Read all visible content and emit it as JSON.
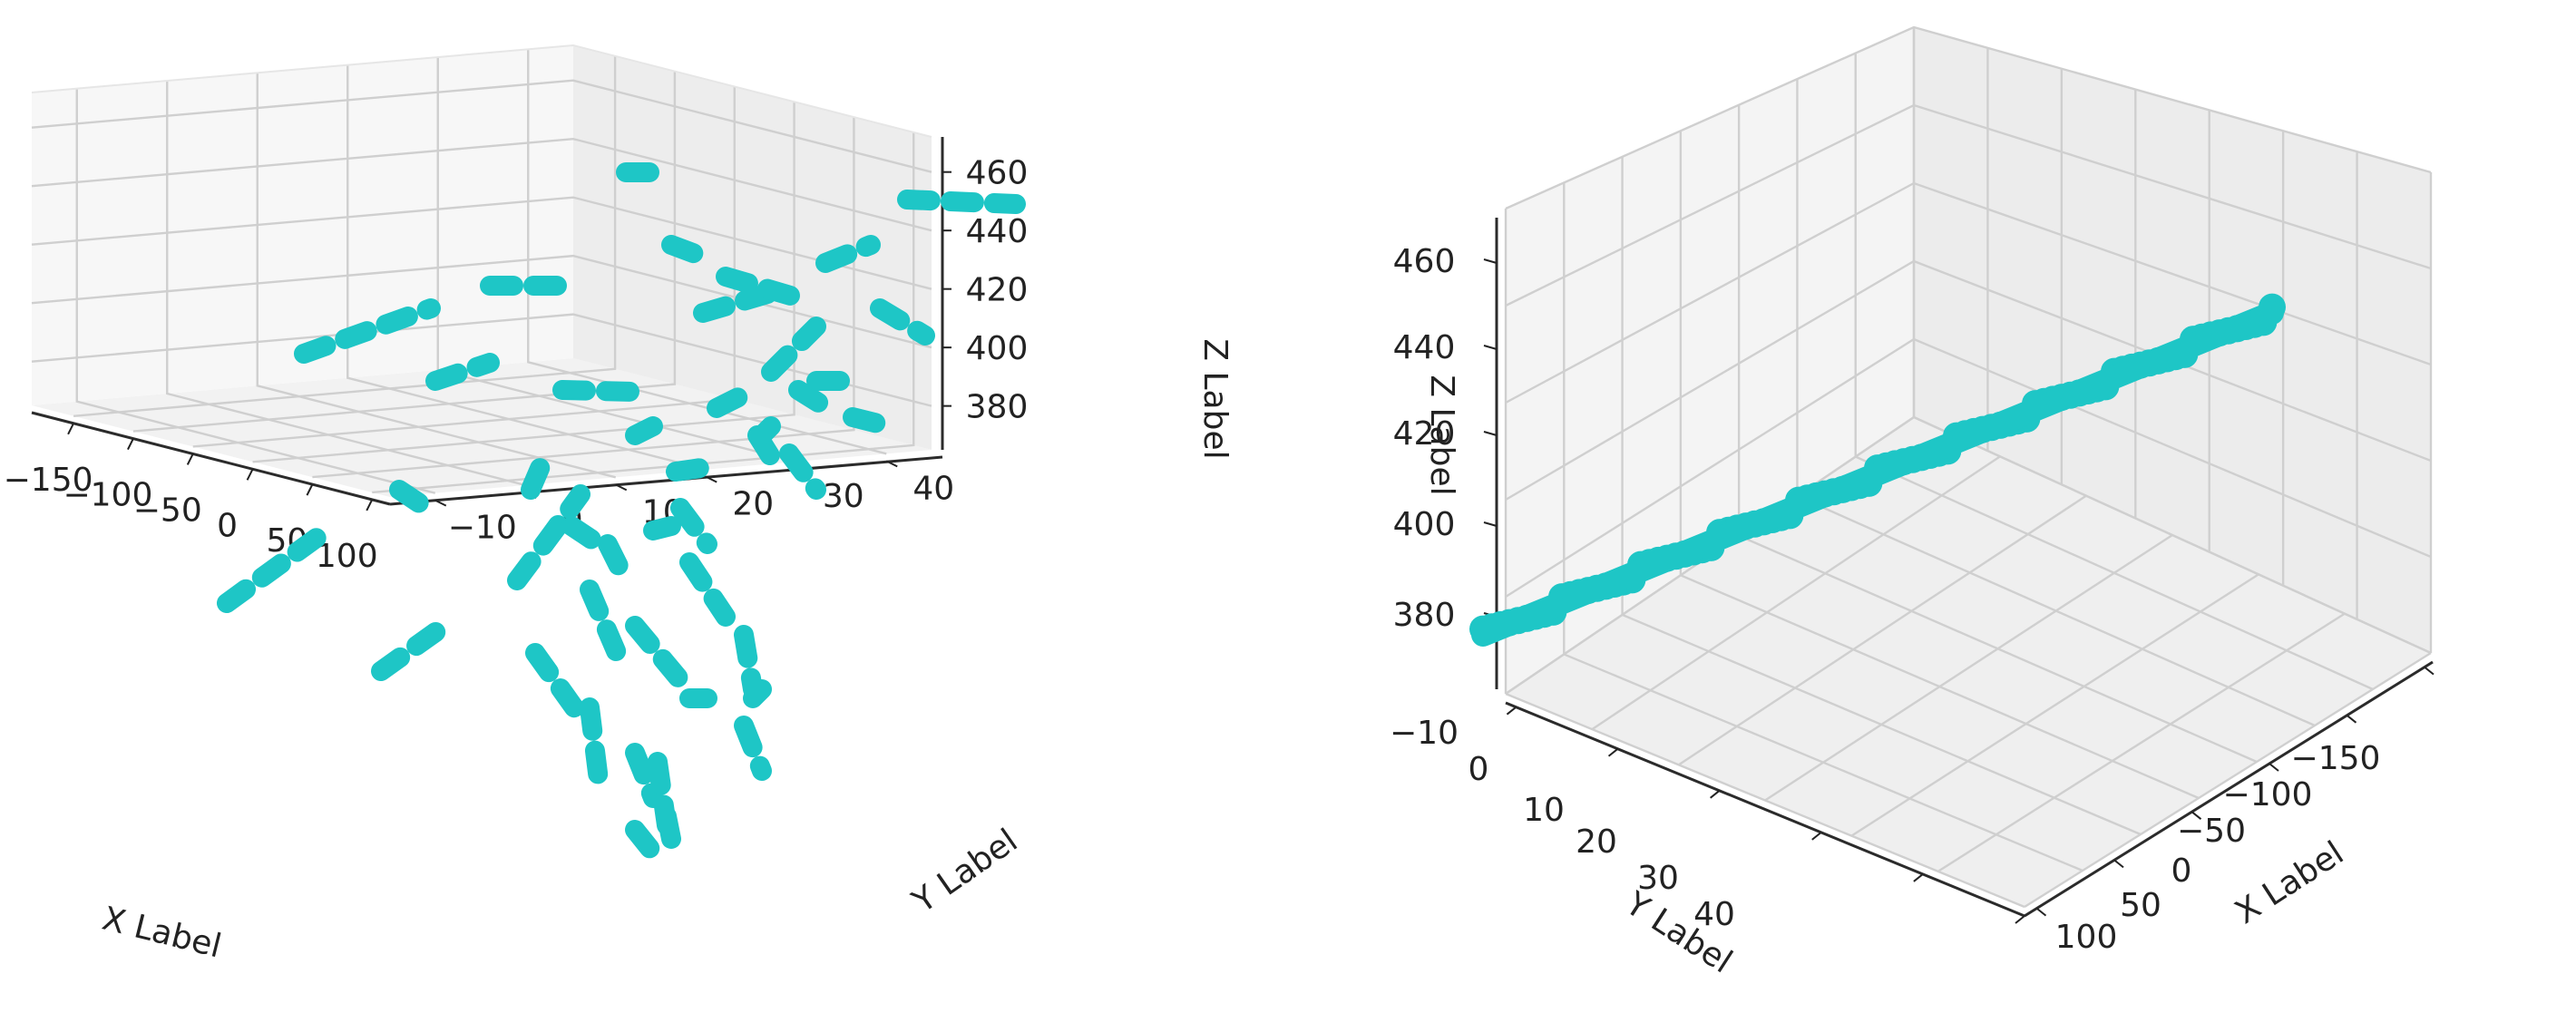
{
  "chart_data": [
    {
      "type": "scatter3d",
      "view": "elevated, looking from negative-x / negative-y corner",
      "xlabel": "X Label",
      "ylabel": "Y Label",
      "zlabel": "Z Label",
      "xticks": [
        -150,
        -100,
        -50,
        0,
        50,
        100
      ],
      "yticks": [
        -10,
        0,
        10,
        20,
        30,
        40
      ],
      "zticks": [
        380,
        400,
        420,
        440,
        460
      ],
      "xlim": [
        -185,
        115
      ],
      "ylim": [
        -15,
        45
      ],
      "zlim": [
        365,
        472
      ],
      "grid": true,
      "marker_color": "#1ec6c6",
      "segments": [
        {
          "from": [
            -180,
            -12,
            378
          ],
          "to": [
            -150,
            -8,
            395
          ]
        },
        {
          "from": [
            -170,
            12,
            428
          ],
          "to": [
            -120,
            18,
            438
          ]
        },
        {
          "from": [
            -90,
            8,
            420
          ],
          "to": [
            -60,
            4,
            424
          ]
        },
        {
          "from": [
            -75,
            25,
            448
          ],
          "to": [
            -45,
            27,
            452
          ]
        },
        {
          "from": [
            -40,
            20,
            428
          ],
          "to": [
            -10,
            20,
            430
          ]
        },
        {
          "from": [
            -20,
            45,
            468
          ],
          "to": [
            10,
            45,
            468
          ]
        },
        {
          "from": [
            -120,
            -15,
            374
          ],
          "to": [
            -100,
            -12,
            382
          ]
        },
        {
          "from": [
            -60,
            -5,
            395
          ],
          "to": [
            -40,
            5,
            408
          ]
        },
        {
          "from": [
            -35,
            15,
            420
          ],
          "to": [
            -25,
            5,
            405
          ]
        },
        {
          "from": [
            -20,
            8,
            410
          ],
          "to": [
            -5,
            15,
            418
          ]
        },
        {
          "from": [
            0,
            30,
            455
          ],
          "to": [
            15,
            35,
            462
          ]
        },
        {
          "from": [
            10,
            20,
            438
          ],
          "to": [
            30,
            22,
            441
          ]
        },
        {
          "from": [
            15,
            15,
            430
          ],
          "to": [
            35,
            20,
            436
          ]
        },
        {
          "from": [
            30,
            10,
            420
          ],
          "to": [
            45,
            15,
            428
          ]
        },
        {
          "from": [
            40,
            30,
            448
          ],
          "to": [
            55,
            35,
            455
          ]
        },
        {
          "from": [
            50,
            25,
            440
          ],
          "to": [
            65,
            22,
            436
          ]
        },
        {
          "from": [
            45,
            15,
            425
          ],
          "to": [
            60,
            12,
            422
          ]
        },
        {
          "from": [
            60,
            40,
            465
          ],
          "to": [
            95,
            42,
            466
          ]
        },
        {
          "from": [
            -40,
            -10,
            382
          ],
          "to": [
            -30,
            -2,
            392
          ]
        },
        {
          "from": [
            -15,
            -8,
            385
          ],
          "to": [
            -5,
            0,
            395
          ]
        },
        {
          "from": [
            5,
            -5,
            390
          ],
          "to": [
            20,
            5,
            402
          ]
        },
        {
          "from": [
            -30,
            5,
            398
          ],
          "to": [
            -10,
            0,
            390
          ]
        },
        {
          "from": [
            10,
            5,
            400
          ],
          "to": [
            25,
            10,
            408
          ]
        },
        {
          "from": [
            -10,
            -12,
            372
          ],
          "to": [
            0,
            -8,
            380
          ]
        },
        {
          "from": [
            20,
            -12,
            372
          ],
          "to": [
            30,
            -6,
            380
          ]
        },
        {
          "from": [
            35,
            -8,
            378
          ],
          "to": [
            45,
            -2,
            386
          ]
        },
        {
          "from": [
            -5,
            -15,
            366
          ],
          "to": [
            0,
            -13,
            370
          ]
        }
      ]
    },
    {
      "type": "scatter3d",
      "view": "rotated, looking along the data so points collapse to a line",
      "xlabel": "X Label",
      "ylabel": "Y Label",
      "zlabel": "Z Label",
      "xticks": [
        -150,
        -100,
        -50,
        0,
        50,
        100
      ],
      "yticks": [
        -10,
        0,
        10,
        20,
        30,
        40
      ],
      "zticks": [
        380,
        400,
        420,
        440,
        460
      ],
      "grid": true,
      "marker_color": "#1ec6c6",
      "line": {
        "from": [
          -10,
          375
        ],
        "to": [
          40,
          452
        ]
      }
    }
  ]
}
